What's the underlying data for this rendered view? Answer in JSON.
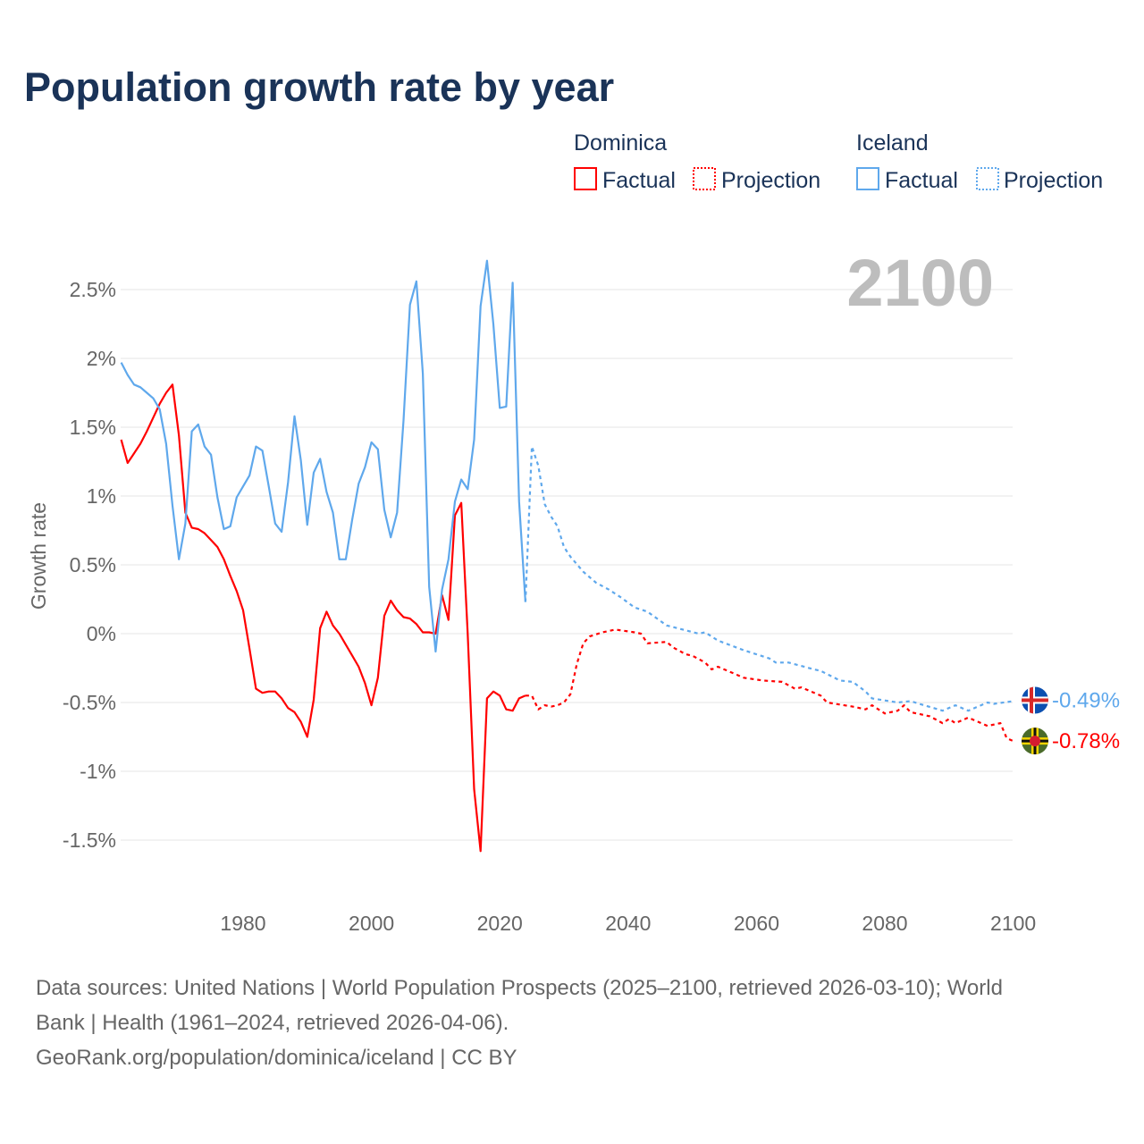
{
  "title": "Population growth rate by year",
  "legend": {
    "groups": [
      {
        "name": "Dominica",
        "color": "#ff0000",
        "factual": "Factual",
        "projection": "Projection"
      },
      {
        "name": "Iceland",
        "color": "#5fa8ec",
        "factual": "Factual",
        "projection": "Projection"
      }
    ]
  },
  "current_year": "2100",
  "footer": {
    "line1": "Data sources: United Nations | World Population Prospects (2025–2100, retrieved 2026-03-10); World",
    "line2": "Bank | Health (1961–2024, retrieved 2026-04-06).",
    "line3": "GeoRank.org/population/dominica/iceland | CC BY"
  },
  "chart_data": {
    "type": "line",
    "title": "Population growth rate by year",
    "xlabel": "",
    "ylabel": "Growth rate",
    "xlim": [
      1961,
      2100
    ],
    "ylim": [
      -1.75,
      2.75
    ],
    "x_ticks": [
      1980,
      2000,
      2020,
      2040,
      2060,
      2080,
      2100
    ],
    "y_ticks": [
      2.5,
      2,
      1.5,
      1,
      0.5,
      0,
      -0.5,
      -1,
      -1.5
    ],
    "y_tick_labels": [
      "2.5%",
      "2%",
      "1.5%",
      "1%",
      "0.5%",
      "0%",
      "-0.5%",
      "-1%",
      "-1.5%"
    ],
    "grid": true,
    "legend_position": "top-right",
    "series": [
      {
        "name": "Dominica Factual",
        "country": "Dominica",
        "kind": "factual",
        "color": "#ff0000",
        "points": [
          [
            1961,
            1.41
          ],
          [
            1962,
            1.24
          ],
          [
            1963,
            1.31
          ],
          [
            1964,
            1.38
          ],
          [
            1965,
            1.47
          ],
          [
            1966,
            1.57
          ],
          [
            1967,
            1.67
          ],
          [
            1968,
            1.75
          ],
          [
            1969,
            1.81
          ],
          [
            1970,
            1.44
          ],
          [
            1971,
            0.88
          ],
          [
            1972,
            0.77
          ],
          [
            1973,
            0.76
          ],
          [
            1974,
            0.73
          ],
          [
            1975,
            0.68
          ],
          [
            1976,
            0.63
          ],
          [
            1977,
            0.54
          ],
          [
            1978,
            0.42
          ],
          [
            1979,
            0.31
          ],
          [
            1980,
            0.17
          ],
          [
            1981,
            -0.11
          ],
          [
            1982,
            -0.4
          ],
          [
            1983,
            -0.43
          ],
          [
            1984,
            -0.42
          ],
          [
            1985,
            -0.42
          ],
          [
            1986,
            -0.47
          ],
          [
            1987,
            -0.54
          ],
          [
            1988,
            -0.57
          ],
          [
            1989,
            -0.64
          ],
          [
            1990,
            -0.75
          ],
          [
            1991,
            -0.48
          ],
          [
            1992,
            0.04
          ],
          [
            1993,
            0.16
          ],
          [
            1994,
            0.06
          ],
          [
            1995,
            0.0
          ],
          [
            1996,
            -0.08
          ],
          [
            1997,
            -0.16
          ],
          [
            1998,
            -0.24
          ],
          [
            1999,
            -0.36
          ],
          [
            2000,
            -0.52
          ],
          [
            2001,
            -0.32
          ],
          [
            2002,
            0.13
          ],
          [
            2003,
            0.24
          ],
          [
            2004,
            0.17
          ],
          [
            2005,
            0.12
          ],
          [
            2006,
            0.11
          ],
          [
            2007,
            0.07
          ],
          [
            2008,
            0.01
          ],
          [
            2009,
            0.01
          ],
          [
            2010,
            0.0
          ],
          [
            2011,
            0.28
          ],
          [
            2012,
            0.1
          ],
          [
            2013,
            0.86
          ],
          [
            2014,
            0.95
          ],
          [
            2015,
            0.0
          ],
          [
            2016,
            -1.13
          ],
          [
            2017,
            -1.58
          ],
          [
            2018,
            -0.47
          ],
          [
            2019,
            -0.42
          ],
          [
            2020,
            -0.45
          ],
          [
            2021,
            -0.55
          ],
          [
            2022,
            -0.56
          ],
          [
            2023,
            -0.47
          ],
          [
            2024,
            -0.45
          ]
        ]
      },
      {
        "name": "Dominica Projection",
        "country": "Dominica",
        "kind": "projection",
        "color": "#ff0000",
        "points": [
          [
            2024,
            -0.45
          ],
          [
            2025,
            -0.45
          ],
          [
            2026,
            -0.55
          ],
          [
            2027,
            -0.52
          ],
          [
            2028,
            -0.53
          ],
          [
            2029,
            -0.52
          ],
          [
            2030,
            -0.5
          ],
          [
            2031,
            -0.44
          ],
          [
            2032,
            -0.22
          ],
          [
            2033,
            -0.07
          ],
          [
            2034,
            -0.02
          ],
          [
            2036,
            0.01
          ],
          [
            2038,
            0.03
          ],
          [
            2041,
            0.01
          ],
          [
            2042,
            0.0
          ],
          [
            2043,
            -0.07
          ],
          [
            2046,
            -0.06
          ],
          [
            2047,
            -0.1
          ],
          [
            2049,
            -0.15
          ],
          [
            2050,
            -0.16
          ],
          [
            2052,
            -0.21
          ],
          [
            2053,
            -0.26
          ],
          [
            2054,
            -0.24
          ],
          [
            2056,
            -0.28
          ],
          [
            2058,
            -0.32
          ],
          [
            2061,
            -0.34
          ],
          [
            2064,
            -0.35
          ],
          [
            2066,
            -0.4
          ],
          [
            2067,
            -0.39
          ],
          [
            2070,
            -0.45
          ],
          [
            2071,
            -0.5
          ],
          [
            2075,
            -0.53
          ],
          [
            2077,
            -0.55
          ],
          [
            2078,
            -0.52
          ],
          [
            2080,
            -0.58
          ],
          [
            2082,
            -0.56
          ],
          [
            2083,
            -0.52
          ],
          [
            2084,
            -0.57
          ],
          [
            2087,
            -0.6
          ],
          [
            2089,
            -0.65
          ],
          [
            2090,
            -0.62
          ],
          [
            2091,
            -0.65
          ],
          [
            2093,
            -0.61
          ],
          [
            2096,
            -0.67
          ],
          [
            2098,
            -0.65
          ],
          [
            2099,
            -0.76
          ],
          [
            2100,
            -0.78
          ]
        ]
      },
      {
        "name": "Iceland Factual",
        "country": "Iceland",
        "kind": "factual",
        "color": "#5fa8ec",
        "points": [
          [
            1961,
            1.97
          ],
          [
            1962,
            1.88
          ],
          [
            1963,
            1.81
          ],
          [
            1964,
            1.79
          ],
          [
            1965,
            1.75
          ],
          [
            1966,
            1.71
          ],
          [
            1967,
            1.63
          ],
          [
            1968,
            1.38
          ],
          [
            1969,
            0.93
          ],
          [
            1970,
            0.54
          ],
          [
            1971,
            0.8
          ],
          [
            1972,
            1.47
          ],
          [
            1973,
            1.52
          ],
          [
            1974,
            1.36
          ],
          [
            1975,
            1.3
          ],
          [
            1976,
            0.99
          ],
          [
            1977,
            0.76
          ],
          [
            1978,
            0.78
          ],
          [
            1979,
            0.99
          ],
          [
            1980,
            1.07
          ],
          [
            1981,
            1.15
          ],
          [
            1982,
            1.36
          ],
          [
            1983,
            1.33
          ],
          [
            1984,
            1.07
          ],
          [
            1985,
            0.8
          ],
          [
            1986,
            0.74
          ],
          [
            1987,
            1.1
          ],
          [
            1988,
            1.58
          ],
          [
            1989,
            1.26
          ],
          [
            1990,
            0.79
          ],
          [
            1991,
            1.17
          ],
          [
            1992,
            1.27
          ],
          [
            1993,
            1.03
          ],
          [
            1994,
            0.88
          ],
          [
            1995,
            0.54
          ],
          [
            1996,
            0.54
          ],
          [
            1997,
            0.83
          ],
          [
            1998,
            1.09
          ],
          [
            1999,
            1.21
          ],
          [
            2000,
            1.39
          ],
          [
            2001,
            1.34
          ],
          [
            2002,
            0.9
          ],
          [
            2003,
            0.7
          ],
          [
            2004,
            0.88
          ],
          [
            2005,
            1.55
          ],
          [
            2006,
            2.39
          ],
          [
            2007,
            2.56
          ],
          [
            2008,
            1.89
          ],
          [
            2009,
            0.34
          ],
          [
            2010,
            -0.13
          ],
          [
            2011,
            0.32
          ],
          [
            2012,
            0.54
          ],
          [
            2013,
            0.96
          ],
          [
            2014,
            1.12
          ],
          [
            2015,
            1.05
          ],
          [
            2016,
            1.41
          ],
          [
            2017,
            2.38
          ],
          [
            2018,
            2.71
          ],
          [
            2019,
            2.25
          ],
          [
            2020,
            1.64
          ],
          [
            2021,
            1.65
          ],
          [
            2022,
            2.55
          ],
          [
            2023,
            0.96
          ],
          [
            2024,
            0.23
          ]
        ]
      },
      {
        "name": "Iceland Projection",
        "country": "Iceland",
        "kind": "projection",
        "color": "#5fa8ec",
        "points": [
          [
            2024,
            0.23
          ],
          [
            2025,
            1.36
          ],
          [
            2026,
            1.22
          ],
          [
            2027,
            0.94
          ],
          [
            2028,
            0.85
          ],
          [
            2029,
            0.78
          ],
          [
            2030,
            0.63
          ],
          [
            2031,
            0.56
          ],
          [
            2033,
            0.45
          ],
          [
            2035,
            0.37
          ],
          [
            2037,
            0.32
          ],
          [
            2039,
            0.26
          ],
          [
            2041,
            0.19
          ],
          [
            2043,
            0.16
          ],
          [
            2046,
            0.06
          ],
          [
            2051,
            0.0
          ],
          [
            2052,
            0.01
          ],
          [
            2054,
            -0.05
          ],
          [
            2058,
            -0.12
          ],
          [
            2062,
            -0.18
          ],
          [
            2063,
            -0.21
          ],
          [
            2065,
            -0.21
          ],
          [
            2069,
            -0.26
          ],
          [
            2070,
            -0.27
          ],
          [
            2073,
            -0.34
          ],
          [
            2075,
            -0.35
          ],
          [
            2077,
            -0.42
          ],
          [
            2078,
            -0.47
          ],
          [
            2082,
            -0.5
          ],
          [
            2084,
            -0.49
          ],
          [
            2089,
            -0.56
          ],
          [
            2091,
            -0.52
          ],
          [
            2093,
            -0.56
          ],
          [
            2096,
            -0.5
          ],
          [
            2097,
            -0.51
          ],
          [
            2100,
            -0.49
          ]
        ]
      }
    ],
    "end_labels": [
      {
        "country": "Iceland",
        "text": "-0.49%",
        "value": -0.49,
        "color": "#5fa8ec",
        "flag": "iceland-flag"
      },
      {
        "country": "Dominica",
        "text": "-0.78%",
        "value": -0.78,
        "color": "#ff0000",
        "flag": "dominica-flag"
      }
    ]
  }
}
